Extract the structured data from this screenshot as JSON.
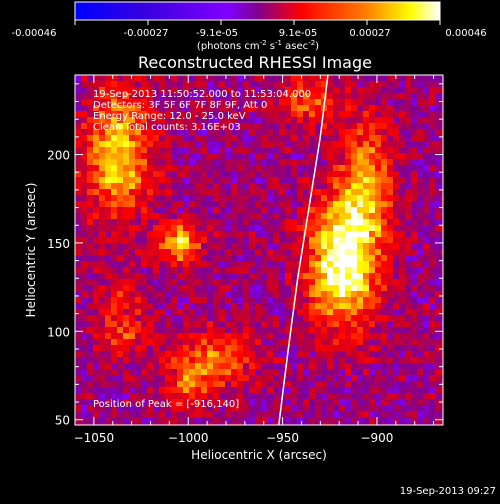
{
  "colorbar": {
    "tick_labels": [
      "-0.00046",
      "-0.00027",
      "-9.1e-05",
      "9.1e-05",
      "0.00027",
      "0.00046"
    ],
    "unit_label": "(photons cm",
    "unit_label_sup1": "-2",
    "unit_label_mid": " s",
    "unit_label_sup2": "-1",
    "unit_label_end": " asec",
    "unit_label_sup3": "-2",
    "unit_label_close": ")"
  },
  "chart_data": {
    "type": "heatmap",
    "title": "Reconstructed RHESSI Image",
    "xlabel": "Heliocentric X (arcsec)",
    "ylabel": "Heliocentric Y (arcsec)",
    "xlim": [
      -1060,
      -865
    ],
    "ylim": [
      47,
      245
    ],
    "xticks": [
      -1050,
      -1000,
      -950,
      -900
    ],
    "xtick_labels": [
      "−1050",
      "−1000",
      "−950",
      "−900"
    ],
    "yticks": [
      50,
      100,
      150,
      200
    ],
    "ytick_labels": [
      "50",
      "100",
      "150",
      "200"
    ],
    "colorbar_range": [
      -0.00046,
      0.00046
    ],
    "colormap": [
      "#0000ff",
      "#5a00d0",
      "#8000ff",
      "#c00050",
      "#ff0000",
      "#ff8000",
      "#ffff00",
      "#ffffff"
    ],
    "info_lines": [
      "19-Sep-2013 11:50:52.000 to 11:53:04.000",
      "Detectors: 3F 5F 6F 7F 8F 9F, Att 0",
      "Energy Range: 12.0 - 25.0 keV",
      "Clean    Total counts: 3.16E+03"
    ],
    "peak_label": "Position of Peak = [-916,140]",
    "peak": [
      -916,
      140
    ],
    "limb_curve": [
      [
        -952,
        47
      ],
      [
        -947,
        90
      ],
      [
        -942,
        130
      ],
      [
        -936,
        170
      ],
      [
        -930,
        210
      ],
      [
        -926,
        245
      ]
    ],
    "sources": [
      {
        "x": -1037,
        "y": 200,
        "amp": 0.00034,
        "sx": 12,
        "sy": 26
      },
      {
        "x": -1005,
        "y": 150,
        "amp": 0.00032,
        "sx": 8,
        "sy": 8
      },
      {
        "x": -918,
        "y": 140,
        "amp": 0.00046,
        "sx": 13,
        "sy": 26
      },
      {
        "x": -905,
        "y": 185,
        "amp": 0.00026,
        "sx": 9,
        "sy": 24
      },
      {
        "x": -985,
        "y": 85,
        "amp": 0.00022,
        "sx": 14,
        "sy": 11
      },
      {
        "x": -1000,
        "y": 70,
        "amp": 0.00018,
        "sx": 10,
        "sy": 9
      },
      {
        "x": -1035,
        "y": 98,
        "amp": 0.00016,
        "sx": 10,
        "sy": 8
      },
      {
        "x": -935,
        "y": 230,
        "amp": 0.0002,
        "sx": 12,
        "sy": 9
      },
      {
        "x": -1035,
        "y": 118,
        "amp": 0.00012,
        "sx": 9,
        "sy": 7
      }
    ]
  },
  "footer": {
    "timestamp": "19-Sep-2013 09:27"
  }
}
